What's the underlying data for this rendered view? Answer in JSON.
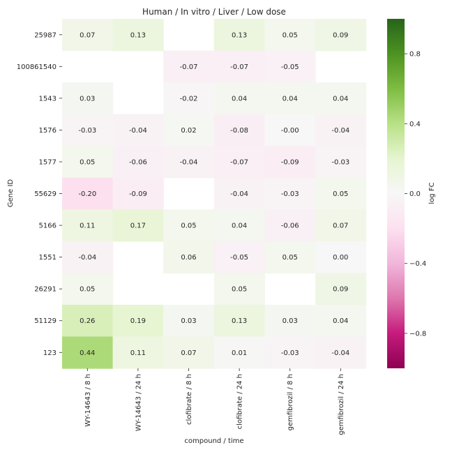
{
  "chart_data": {
    "type": "heatmap",
    "title": "Human / In vitro / Liver / Low dose",
    "xlabel": "compound / time",
    "ylabel": "Gene ID",
    "x_categories": [
      "WY-14643 / 8 h",
      "WY-14643 / 24 h",
      "clofibrate / 8 h",
      "clofibrate / 24 h",
      "gemfibrozil / 8 h",
      "gemfibrozil / 24 h"
    ],
    "y_categories": [
      "25987",
      "100861540",
      "1543",
      "1576",
      "1577",
      "55629",
      "5166",
      "1551",
      "26291",
      "51129",
      "123"
    ],
    "values": [
      [
        0.07,
        0.13,
        null,
        0.13,
        0.05,
        0.09
      ],
      [
        null,
        null,
        -0.07,
        -0.07,
        -0.05,
        null
      ],
      [
        0.03,
        null,
        -0.02,
        0.04,
        0.04,
        0.04
      ],
      [
        -0.03,
        -0.04,
        0.02,
        -0.08,
        -0.0,
        -0.04
      ],
      [
        0.05,
        -0.06,
        -0.04,
        -0.07,
        -0.09,
        -0.03
      ],
      [
        -0.2,
        -0.09,
        null,
        -0.04,
        -0.03,
        0.05
      ],
      [
        0.11,
        0.17,
        0.05,
        0.04,
        -0.06,
        0.07
      ],
      [
        -0.04,
        null,
        0.06,
        -0.05,
        0.05,
        0.0
      ],
      [
        0.05,
        null,
        null,
        0.05,
        null,
        0.09
      ],
      [
        0.26,
        0.19,
        0.03,
        0.13,
        0.03,
        0.04
      ],
      [
        0.44,
        0.11,
        0.07,
        0.01,
        -0.03,
        -0.04
      ]
    ],
    "value_labels": [
      [
        "0.07",
        "0.13",
        "",
        "0.13",
        "0.05",
        "0.09"
      ],
      [
        "",
        "",
        "-0.07",
        "-0.07",
        "-0.05",
        ""
      ],
      [
        "0.03",
        "",
        "-0.02",
        "0.04",
        "0.04",
        "0.04"
      ],
      [
        "-0.03",
        "-0.04",
        "0.02",
        "-0.08",
        "-0.00",
        "-0.04"
      ],
      [
        "0.05",
        "-0.06",
        "-0.04",
        "-0.07",
        "-0.09",
        "-0.03"
      ],
      [
        "-0.20",
        "-0.09",
        "",
        "-0.04",
        "-0.03",
        "0.05"
      ],
      [
        "0.11",
        "0.17",
        "0.05",
        "0.04",
        "-0.06",
        "0.07"
      ],
      [
        "-0.04",
        "",
        "0.06",
        "-0.05",
        "0.05",
        "0.00"
      ],
      [
        "0.05",
        "",
        "",
        "0.05",
        "",
        "0.09"
      ],
      [
        "0.26",
        "0.19",
        "0.03",
        "0.13",
        "0.03",
        "0.04"
      ],
      [
        "0.44",
        "0.11",
        "0.07",
        "0.01",
        "-0.03",
        "-0.04"
      ]
    ],
    "colorbar": {
      "label": "log FC",
      "range": [
        -1.0,
        1.0
      ],
      "ticks": [
        -0.8,
        -0.4,
        0.0,
        0.4,
        0.8
      ],
      "tick_labels": [
        "−0.8",
        "−0.4",
        "0.0",
        "0.4",
        "0.8"
      ],
      "colormap": "PiYG",
      "colors": [
        "#8e0152",
        "#c51b7d",
        "#de77ae",
        "#f1b6da",
        "#fde0ef",
        "#f7f7f7",
        "#e6f5d0",
        "#b8e186",
        "#7fbc41",
        "#4d9221",
        "#276419"
      ]
    },
    "missing_cells": "blank (white)",
    "grid": false
  }
}
